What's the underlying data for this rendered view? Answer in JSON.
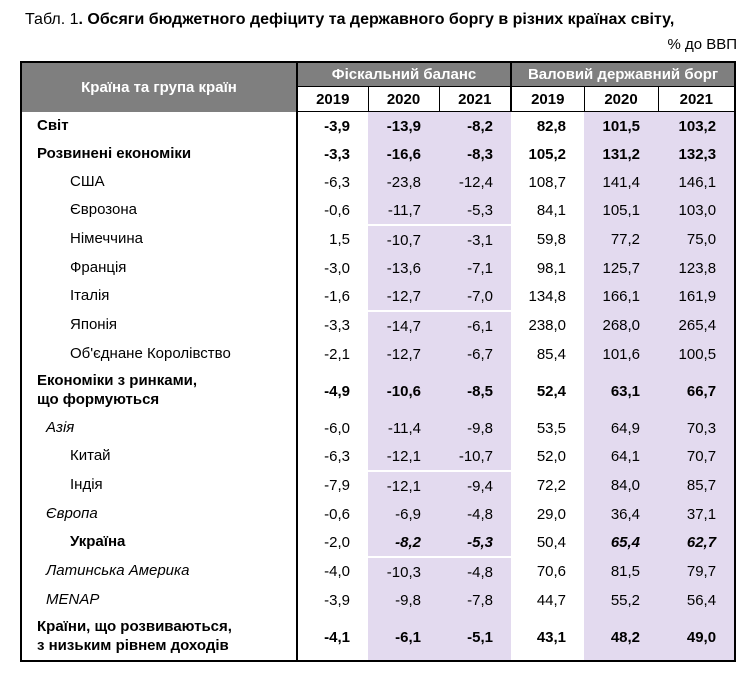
{
  "title": {
    "prefix": "Табл. 1",
    "main": ". Обсяги бюджетного дефіциту та державного боргу в різних країнах світу,",
    "unit": "% до ВВП"
  },
  "colors": {
    "header_bg": "#7F7F7F",
    "header_text": "#FFFFFF",
    "highlight_bg": "#E3DAEF",
    "border": "#000000"
  },
  "table": {
    "corner_header": "Країна та група країн",
    "groups": [
      {
        "label": "Фіскальний баланс",
        "years": [
          "2019",
          "2020",
          "2021"
        ]
      },
      {
        "label": "Валовий державний борг",
        "years": [
          "2019",
          "2020",
          "2021"
        ]
      }
    ],
    "rows": [
      {
        "label": "Світ",
        "indent": 0,
        "label_style": "b",
        "tall": false,
        "separator_after": false,
        "values": [
          "-3,9",
          "-13,9",
          "-8,2",
          "82,8",
          "101,5",
          "103,2"
        ],
        "value_styles": [
          "b",
          "b",
          "b",
          "b",
          "b",
          "b"
        ]
      },
      {
        "label": "Розвинені економіки",
        "indent": 0,
        "label_style": "b",
        "tall": false,
        "separator_after": false,
        "values": [
          "-3,3",
          "-16,6",
          "-8,3",
          "105,2",
          "131,2",
          "132,3"
        ],
        "value_styles": [
          "b",
          "b",
          "b",
          "b",
          "b",
          "b"
        ]
      },
      {
        "label": "США",
        "indent": 2,
        "label_style": "n",
        "tall": false,
        "separator_after": false,
        "values": [
          "-6,3",
          "-23,8",
          "-12,4",
          "108,7",
          "141,4",
          "146,1"
        ],
        "value_styles": [
          "n",
          "n",
          "n",
          "n",
          "n",
          "n"
        ]
      },
      {
        "label": "Єврозона",
        "indent": 2,
        "label_style": "n",
        "tall": false,
        "separator_after": true,
        "values": [
          "-0,6",
          "-11,7",
          "-5,3",
          "84,1",
          "105,1",
          "103,0"
        ],
        "value_styles": [
          "n",
          "n",
          "n",
          "n",
          "n",
          "n"
        ]
      },
      {
        "label": "Німеччина",
        "indent": 2,
        "label_style": "n",
        "tall": false,
        "separator_after": false,
        "values": [
          "1,5",
          "-10,7",
          "-3,1",
          "59,8",
          "77,2",
          "75,0"
        ],
        "value_styles": [
          "n",
          "n",
          "n",
          "n",
          "n",
          "n"
        ]
      },
      {
        "label": "Франція",
        "indent": 2,
        "label_style": "n",
        "tall": false,
        "separator_after": false,
        "values": [
          "-3,0",
          "-13,6",
          "-7,1",
          "98,1",
          "125,7",
          "123,8"
        ],
        "value_styles": [
          "n",
          "n",
          "n",
          "n",
          "n",
          "n"
        ]
      },
      {
        "label": "Італія",
        "indent": 2,
        "label_style": "n",
        "tall": false,
        "separator_after": true,
        "values": [
          "-1,6",
          "-12,7",
          "-7,0",
          "134,8",
          "166,1",
          "161,9"
        ],
        "value_styles": [
          "n",
          "n",
          "n",
          "n",
          "n",
          "n"
        ]
      },
      {
        "label": "Японія",
        "indent": 2,
        "label_style": "n",
        "tall": false,
        "separator_after": false,
        "values": [
          "-3,3",
          "-14,7",
          "-6,1",
          "238,0",
          "268,0",
          "265,4"
        ],
        "value_styles": [
          "n",
          "n",
          "n",
          "n",
          "n",
          "n"
        ]
      },
      {
        "label": "Об'єднане Королівство",
        "indent": 2,
        "label_style": "n",
        "tall": false,
        "separator_after": false,
        "values": [
          "-2,1",
          "-12,7",
          "-6,7",
          "85,4",
          "101,6",
          "100,5"
        ],
        "value_styles": [
          "n",
          "n",
          "n",
          "n",
          "n",
          "n"
        ]
      },
      {
        "label": "Економіки з ринками,\nщо формуються",
        "indent": 0,
        "label_style": "b",
        "tall": true,
        "separator_after": false,
        "values": [
          "-4,9",
          "-10,6",
          "-8,5",
          "52,4",
          "63,1",
          "66,7"
        ],
        "value_styles": [
          "b",
          "b",
          "b",
          "b",
          "b",
          "b"
        ]
      },
      {
        "label": "Азія",
        "indent": 1,
        "label_style": "i",
        "tall": false,
        "separator_after": false,
        "values": [
          "-6,0",
          "-11,4",
          "-9,8",
          "53,5",
          "64,9",
          "70,3"
        ],
        "value_styles": [
          "n",
          "n",
          "n",
          "n",
          "n",
          "n"
        ]
      },
      {
        "label": "Китай",
        "indent": 2,
        "label_style": "n",
        "tall": false,
        "separator_after": true,
        "values": [
          "-6,3",
          "-12,1",
          "-10,7",
          "52,0",
          "64,1",
          "70,7"
        ],
        "value_styles": [
          "n",
          "n",
          "n",
          "n",
          "n",
          "n"
        ]
      },
      {
        "label": "Індія",
        "indent": 2,
        "label_style": "n",
        "tall": false,
        "separator_after": false,
        "values": [
          "-7,9",
          "-12,1",
          "-9,4",
          "72,2",
          "84,0",
          "85,7"
        ],
        "value_styles": [
          "n",
          "n",
          "n",
          "n",
          "n",
          "n"
        ]
      },
      {
        "label": "Європа",
        "indent": 1,
        "label_style": "i",
        "tall": false,
        "separator_after": false,
        "values": [
          "-0,6",
          "-6,9",
          "-4,8",
          "29,0",
          "36,4",
          "37,1"
        ],
        "value_styles": [
          "n",
          "n",
          "n",
          "n",
          "n",
          "n"
        ]
      },
      {
        "label": "Україна",
        "indent": 2,
        "label_style": "b",
        "tall": false,
        "separator_after": true,
        "values": [
          "-2,0",
          "-8,2",
          "-5,3",
          "50,4",
          "65,4",
          "62,7"
        ],
        "value_styles": [
          "n",
          "bi",
          "bi",
          "n",
          "bi",
          "bi"
        ]
      },
      {
        "label": "Латинська Америка",
        "indent": 1,
        "label_style": "i",
        "tall": false,
        "separator_after": false,
        "values": [
          "-4,0",
          "-10,3",
          "-4,8",
          "70,6",
          "81,5",
          "79,7"
        ],
        "value_styles": [
          "n",
          "n",
          "n",
          "n",
          "n",
          "n"
        ]
      },
      {
        "label": "MENAP",
        "indent": 1,
        "label_style": "i",
        "tall": false,
        "separator_after": false,
        "values": [
          "-3,9",
          "-9,8",
          "-7,8",
          "44,7",
          "55,2",
          "56,4"
        ],
        "value_styles": [
          "n",
          "n",
          "n",
          "n",
          "n",
          "n"
        ]
      },
      {
        "label": "Країни, що розвиваються,\nз низьким рівнем доходів",
        "indent": 0,
        "label_style": "b",
        "tall": true,
        "separator_after": false,
        "values": [
          "-4,1",
          "-6,1",
          "-5,1",
          "43,1",
          "48,2",
          "49,0"
        ],
        "value_styles": [
          "b",
          "b",
          "b",
          "b",
          "b",
          "b"
        ]
      }
    ]
  }
}
